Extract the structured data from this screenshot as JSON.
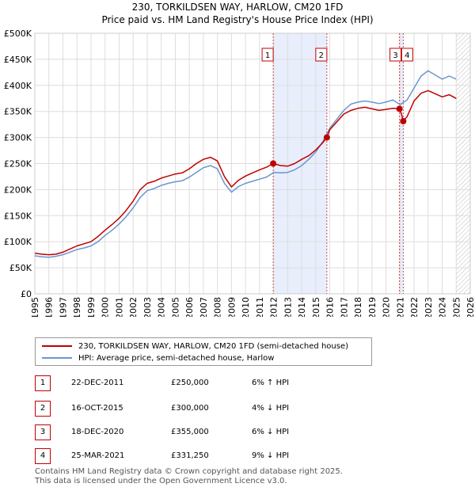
{
  "title_line1": "230, TORKILDSEN WAY, HARLOW, CM20 1FD",
  "title_line2": "Price paid vs. HM Land Registry's House Price Index (HPI)",
  "colors": {
    "price_paid": "#c00000",
    "hpi": "#6a96cf",
    "highlight": "#e8eefb",
    "grid": "#dddddd"
  },
  "chart_data": {
    "type": "line",
    "xlim": [
      1995,
      2026
    ],
    "ylim": [
      0,
      500000
    ],
    "y_ticks": [
      0,
      50000,
      100000,
      150000,
      200000,
      250000,
      300000,
      350000,
      400000,
      450000,
      500000
    ],
    "y_tick_labels": [
      "£0",
      "£50K",
      "£100K",
      "£150K",
      "£200K",
      "£250K",
      "£300K",
      "£350K",
      "£400K",
      "£450K",
      "£500K"
    ],
    "x_ticks": [
      1995,
      1996,
      1997,
      1998,
      1999,
      2000,
      2001,
      2002,
      2003,
      2004,
      2005,
      2006,
      2007,
      2008,
      2009,
      2010,
      2011,
      2012,
      2013,
      2014,
      2015,
      2016,
      2017,
      2018,
      2019,
      2020,
      2021,
      2022,
      2023,
      2024,
      2025,
      2026
    ],
    "x_tick_labels": [
      "1995",
      "1996",
      "1997",
      "1998",
      "1999",
      "2000",
      "2001",
      "2002",
      "2003",
      "2004",
      "2005",
      "2006",
      "2007",
      "2008",
      "2009",
      "2010",
      "2011",
      "2012",
      "2013",
      "2014",
      "2015",
      "2016",
      "2017",
      "2018",
      "2019",
      "2020",
      "2021",
      "2022",
      "2023",
      "2024",
      "2025",
      "2026"
    ],
    "highlight_ranges": [
      [
        2011.97,
        2015.79
      ],
      [
        2020.96,
        2021.23
      ]
    ],
    "future_hatch_from": 2025.0,
    "series": [
      {
        "name": "230, TORKILDSEN WAY, HARLOW, CM20 1FD (semi-detached house)",
        "color": "#c00000",
        "x": [
          1995.0,
          1995.5,
          1996.0,
          1996.5,
          1997.0,
          1997.5,
          1998.0,
          1998.5,
          1999.0,
          1999.5,
          2000.0,
          2000.5,
          2001.0,
          2001.5,
          2002.0,
          2002.5,
          2003.0,
          2003.5,
          2004.0,
          2004.5,
          2005.0,
          2005.5,
          2006.0,
          2006.5,
          2007.0,
          2007.5,
          2008.0,
          2008.5,
          2009.0,
          2009.5,
          2010.0,
          2010.5,
          2011.0,
          2011.5,
          2011.97,
          2012.5,
          2013.0,
          2013.5,
          2014.0,
          2014.5,
          2015.0,
          2015.5,
          2015.79,
          2016.0,
          2016.5,
          2017.0,
          2017.5,
          2018.0,
          2018.5,
          2019.0,
          2019.5,
          2020.0,
          2020.5,
          2020.96,
          2021.1,
          2021.23,
          2021.5,
          2022.0,
          2022.5,
          2023.0,
          2023.5,
          2024.0,
          2024.5,
          2025.0
        ],
        "values": [
          78000,
          76000,
          75000,
          76000,
          80000,
          86000,
          92000,
          96000,
          100000,
          110000,
          122000,
          133000,
          145000,
          160000,
          178000,
          200000,
          212000,
          216000,
          222000,
          226000,
          230000,
          232000,
          240000,
          250000,
          258000,
          262000,
          255000,
          225000,
          205000,
          218000,
          226000,
          232000,
          238000,
          243000,
          250000,
          246000,
          245000,
          250000,
          258000,
          265000,
          276000,
          290000,
          300000,
          315000,
          330000,
          345000,
          352000,
          356000,
          358000,
          355000,
          352000,
          354000,
          356000,
          355000,
          345000,
          331250,
          340000,
          370000,
          385000,
          390000,
          384000,
          378000,
          382000,
          375000
        ]
      },
      {
        "name": "HPI: Average price, semi-detached house, Harlow",
        "color": "#6a96cf",
        "x": [
          1995.0,
          1995.5,
          1996.0,
          1996.5,
          1997.0,
          1997.5,
          1998.0,
          1998.5,
          1999.0,
          1999.5,
          2000.0,
          2000.5,
          2001.0,
          2001.5,
          2002.0,
          2002.5,
          2003.0,
          2003.5,
          2004.0,
          2004.5,
          2005.0,
          2005.5,
          2006.0,
          2006.5,
          2007.0,
          2007.5,
          2008.0,
          2008.5,
          2009.0,
          2009.5,
          2010.0,
          2010.5,
          2011.0,
          2011.5,
          2012.0,
          2012.5,
          2013.0,
          2013.5,
          2014.0,
          2014.5,
          2015.0,
          2015.5,
          2016.0,
          2016.5,
          2017.0,
          2017.5,
          2018.0,
          2018.5,
          2019.0,
          2019.5,
          2020.0,
          2020.5,
          2021.0,
          2021.5,
          2022.0,
          2022.5,
          2023.0,
          2023.5,
          2024.0,
          2024.5,
          2025.0
        ],
        "values": [
          73000,
          71000,
          70000,
          72000,
          75000,
          80000,
          85000,
          88000,
          92000,
          100000,
          112000,
          122000,
          134000,
          148000,
          165000,
          185000,
          198000,
          202000,
          208000,
          212000,
          215000,
          217000,
          224000,
          233000,
          242000,
          246000,
          240000,
          212000,
          195000,
          206000,
          212000,
          216000,
          220000,
          224000,
          233000,
          232000,
          233000,
          238000,
          246000,
          258000,
          272000,
          292000,
          318000,
          335000,
          352000,
          364000,
          368000,
          370000,
          368000,
          365000,
          368000,
          372000,
          363000,
          372000,
          395000,
          418000,
          428000,
          420000,
          412000,
          418000,
          412000
        ]
      }
    ],
    "markers": [
      {
        "label": "1",
        "x": 2011.97,
        "value": 250000
      },
      {
        "label": "2",
        "x": 2015.79,
        "value": 300000
      },
      {
        "label": "3",
        "x": 2020.96,
        "value": 355000
      },
      {
        "label": "4",
        "x": 2021.23,
        "value": 331250
      }
    ]
  },
  "legend": {
    "price_paid_label": "230, TORKILDSEN WAY, HARLOW, CM20 1FD (semi-detached house)",
    "hpi_label": "HPI: Average price, semi-detached house, Harlow"
  },
  "transactions": [
    {
      "num": "1",
      "date": "22-DEC-2011",
      "price": "£250,000",
      "hpi": "6% ↑ HPI"
    },
    {
      "num": "2",
      "date": "16-OCT-2015",
      "price": "£300,000",
      "hpi": "4% ↓ HPI"
    },
    {
      "num": "3",
      "date": "18-DEC-2020",
      "price": "£355,000",
      "hpi": "6% ↓ HPI"
    },
    {
      "num": "4",
      "date": "25-MAR-2021",
      "price": "£331,250",
      "hpi": "9% ↓ HPI"
    }
  ],
  "footer_line1": "Contains HM Land Registry data © Crown copyright and database right 2025.",
  "footer_line2": "This data is licensed under the Open Government Licence v3.0."
}
